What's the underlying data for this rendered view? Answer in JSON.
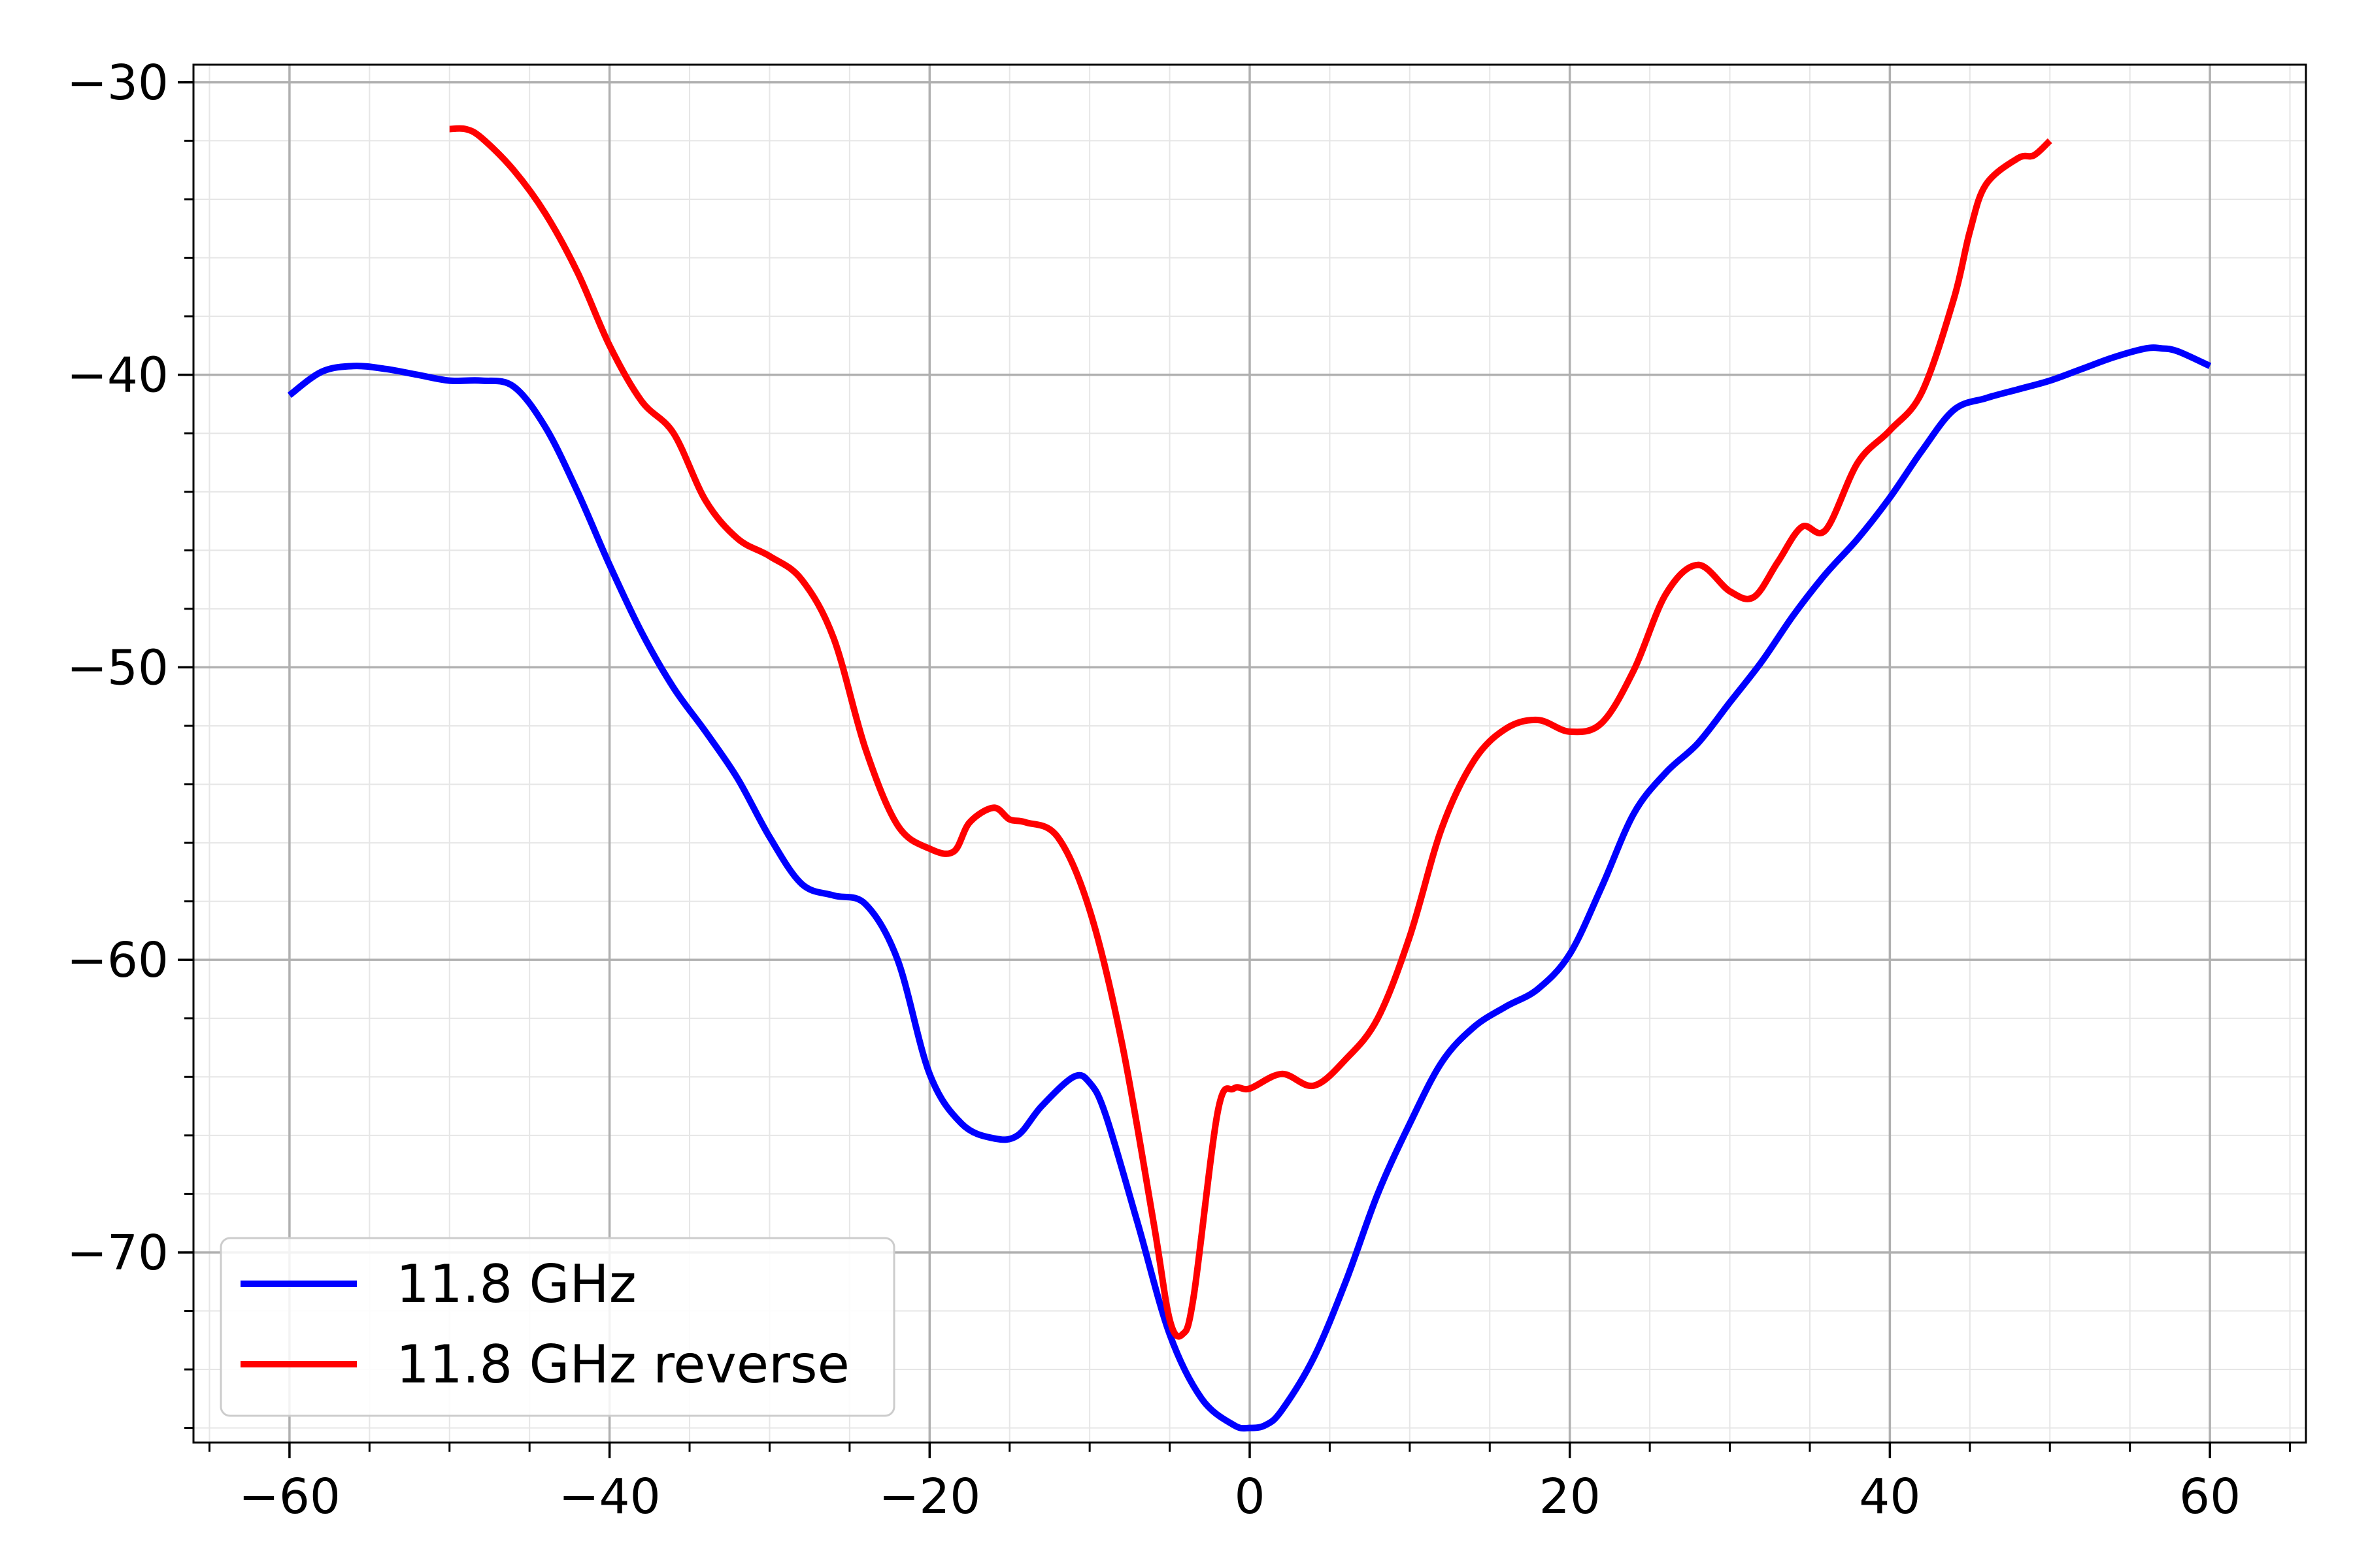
{
  "chart_data": {
    "type": "line",
    "title": "",
    "xlabel": "",
    "ylabel": "",
    "xlim": [
      -66,
      66
    ],
    "ylim": [
      -76.5,
      -29.4
    ],
    "xticks": [
      -60,
      -40,
      -20,
      0,
      20,
      40,
      60
    ],
    "xtick_labels": [
      "−60",
      "−40",
      "−20",
      "0",
      "20",
      "40",
      "60"
    ],
    "yticks": [
      -70,
      -60,
      -50,
      -40,
      -30
    ],
    "ytick_labels": [
      "−70",
      "−60",
      "−50",
      "−40",
      "−30"
    ],
    "grid": true,
    "minor_grid": true,
    "legend_position": "lower-left",
    "series": [
      {
        "name": "11.8 GHz",
        "color": "#0000ff",
        "x": [
          -60,
          -58,
          -56,
          -54,
          -52,
          -50,
          -48,
          -46,
          -44,
          -42,
          -40,
          -38,
          -36,
          -34,
          -32,
          -30,
          -28,
          -26,
          -24,
          -22,
          -20,
          -18,
          -16,
          -14.5,
          -13,
          -11,
          -10,
          -9,
          -7,
          -5,
          -3,
          -1,
          0,
          1,
          2,
          4,
          6,
          8,
          10,
          12,
          14,
          16,
          18,
          20,
          22,
          24,
          26,
          28,
          30,
          32,
          34,
          36,
          38,
          40,
          42,
          44,
          46,
          48,
          50,
          52,
          54,
          56,
          57,
          58,
          60
        ],
        "y": [
          -40.7,
          -39.9,
          -39.7,
          -39.8,
          -40.0,
          -40.2,
          -40.2,
          -40.4,
          -41.8,
          -44.0,
          -46.5,
          -48.8,
          -50.7,
          -52.2,
          -53.8,
          -55.8,
          -57.4,
          -57.8,
          -58.1,
          -60.0,
          -63.9,
          -65.6,
          -66.1,
          -66.0,
          -65.0,
          -64.0,
          -64.2,
          -65.3,
          -69.0,
          -72.8,
          -75.0,
          -75.9,
          -76.0,
          -75.9,
          -75.4,
          -73.6,
          -71.0,
          -68.0,
          -65.6,
          -63.5,
          -62.3,
          -61.6,
          -61.0,
          -59.8,
          -57.5,
          -55.0,
          -53.6,
          -52.6,
          -51.2,
          -49.8,
          -48.2,
          -46.8,
          -45.6,
          -44.2,
          -42.6,
          -41.2,
          -40.8,
          -40.5,
          -40.2,
          -39.8,
          -39.4,
          -39.1,
          -39.1,
          -39.2,
          -39.7
        ]
      },
      {
        "name": "11.8 GHz reverse",
        "color": "#ff0000",
        "x": [
          -50,
          -49,
          -48,
          -46,
          -44,
          -42,
          -40,
          -38,
          -36,
          -34,
          -32,
          -30,
          -28,
          -26,
          -24,
          -22,
          -20,
          -18.5,
          -17.5,
          -16,
          -15,
          -14,
          -12,
          -10,
          -8,
          -6,
          -5,
          -4.2,
          -3.5,
          -2,
          -1,
          0,
          2,
          4,
          6,
          8,
          10,
          12,
          14,
          16,
          18,
          20,
          22,
          24,
          26,
          28,
          30,
          31.5,
          33,
          34.5,
          36,
          38,
          40,
          42,
          44,
          45,
          46,
          48,
          49,
          50
        ],
        "y": [
          -31.6,
          -31.6,
          -31.9,
          -33.0,
          -34.5,
          -36.5,
          -39.0,
          -40.9,
          -42.0,
          -44.3,
          -45.6,
          -46.2,
          -47.0,
          -49.0,
          -52.8,
          -55.4,
          -56.2,
          -56.3,
          -55.3,
          -54.8,
          -55.2,
          -55.3,
          -55.8,
          -58.3,
          -62.8,
          -69.0,
          -72.3,
          -72.8,
          -71.5,
          -65.2,
          -64.4,
          -64.4,
          -63.9,
          -64.3,
          -63.4,
          -62.0,
          -59.2,
          -55.5,
          -53.2,
          -52.1,
          -51.8,
          -52.2,
          -51.9,
          -50.1,
          -47.5,
          -46.5,
          -47.4,
          -47.6,
          -46.4,
          -45.2,
          -45.3,
          -43.0,
          -41.9,
          -40.6,
          -37.4,
          -35.1,
          -33.5,
          -32.6,
          -32.5,
          -32.0
        ]
      }
    ]
  }
}
